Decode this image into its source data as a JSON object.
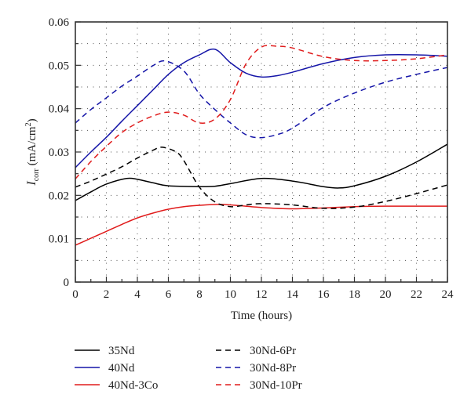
{
  "chart_data": {
    "type": "line",
    "title": "",
    "xlabel": "Time (hours)",
    "ylabel_main": "I",
    "ylabel_sub": "corr",
    "ylabel_unit": " (mA/cm",
    "ylabel_sup": "2",
    "ylabel_close": ")",
    "xlim": [
      0,
      24
    ],
    "ylim": [
      0,
      0.06
    ],
    "xticks": [
      0,
      2,
      4,
      6,
      8,
      10,
      12,
      14,
      16,
      18,
      20,
      22,
      24
    ],
    "xtick_labels": [
      "0",
      "2",
      "4",
      "6",
      "8",
      "10",
      "12",
      "14",
      "16",
      "18",
      "20",
      "22",
      "24"
    ],
    "yticks": [
      0,
      0.01,
      0.02,
      0.03,
      0.04,
      0.05,
      0.06
    ],
    "ytick_labels": [
      "0",
      "0.01",
      "0.02",
      "0.03",
      "0.04",
      "0.05",
      "0.06"
    ],
    "grid": true,
    "legend_position": "bottom",
    "series": [
      {
        "name": "35Nd",
        "color": "#000000",
        "dash": "solid",
        "x": [
          0,
          1,
          2,
          3.3,
          4,
          5,
          6,
          8,
          9,
          10,
          12,
          14,
          16,
          17,
          18,
          20,
          22,
          24
        ],
        "y": [
          0.0188,
          0.0208,
          0.0226,
          0.0239,
          0.0237,
          0.0229,
          0.0222,
          0.022,
          0.0221,
          0.0227,
          0.0239,
          0.0233,
          0.022,
          0.0217,
          0.0222,
          0.0244,
          0.0277,
          0.0318
        ]
      },
      {
        "name": "40Nd",
        "color": "#1515a8",
        "dash": "solid",
        "x": [
          0,
          1,
          2,
          3,
          4,
          5,
          6,
          7,
          8,
          9,
          10,
          11,
          12,
          13,
          14,
          16,
          18,
          20,
          22,
          24
        ],
        "y": [
          0.0264,
          0.03,
          0.0334,
          0.0371,
          0.0407,
          0.0443,
          0.0479,
          0.0506,
          0.0524,
          0.0537,
          0.0506,
          0.0482,
          0.0473,
          0.0476,
          0.0484,
          0.0504,
          0.0518,
          0.0524,
          0.0524,
          0.0521
        ]
      },
      {
        "name": "40Nd-3Co",
        "color": "#e01b1b",
        "dash": "solid",
        "x": [
          0,
          1,
          2,
          3,
          4,
          5,
          6,
          7,
          8,
          9,
          10,
          12,
          14,
          16,
          18,
          20,
          22,
          24
        ],
        "y": [
          0.0085,
          0.0101,
          0.0117,
          0.0133,
          0.0148,
          0.0159,
          0.0168,
          0.0174,
          0.0177,
          0.0179,
          0.0178,
          0.0172,
          0.0169,
          0.0171,
          0.0174,
          0.0175,
          0.0175,
          0.0175
        ]
      },
      {
        "name": "30Nd-6Pr",
        "color": "#000000",
        "dash": "dashed",
        "x": [
          0,
          1,
          2,
          3,
          4,
          5,
          5.6,
          6.5,
          7,
          8,
          9,
          10,
          11,
          12,
          14,
          16,
          18,
          20,
          22,
          24
        ],
        "y": [
          0.0219,
          0.0233,
          0.0249,
          0.0266,
          0.0286,
          0.0304,
          0.0311,
          0.03,
          0.028,
          0.0219,
          0.0185,
          0.0174,
          0.0178,
          0.0181,
          0.0178,
          0.017,
          0.0173,
          0.0186,
          0.0204,
          0.0224
        ]
      },
      {
        "name": "30Nd-8Pr",
        "color": "#1515a8",
        "dash": "dashed",
        "x": [
          0,
          1,
          2,
          3,
          4,
          5,
          5.8,
          7,
          8,
          9,
          10,
          11,
          11.9,
          13,
          14,
          16,
          18,
          20,
          22,
          24
        ],
        "y": [
          0.0367,
          0.0398,
          0.0425,
          0.0452,
          0.0475,
          0.0499,
          0.051,
          0.0487,
          0.0434,
          0.0398,
          0.0367,
          0.034,
          0.0333,
          0.034,
          0.0355,
          0.0403,
          0.0436,
          0.0461,
          0.0479,
          0.0495
        ]
      },
      {
        "name": "30Nd-10Pr",
        "color": "#e01b1b",
        "dash": "dashed",
        "x": [
          0,
          1,
          2,
          3,
          4,
          5,
          6,
          7,
          8,
          9,
          10,
          11,
          12,
          13,
          14,
          16,
          18,
          20,
          22,
          24
        ],
        "y": [
          0.0238,
          0.0278,
          0.0313,
          0.0345,
          0.0367,
          0.0383,
          0.0392,
          0.0385,
          0.0367,
          0.0376,
          0.0421,
          0.0503,
          0.0542,
          0.0544,
          0.054,
          0.052,
          0.0511,
          0.0511,
          0.0515,
          0.0524
        ]
      }
    ]
  }
}
